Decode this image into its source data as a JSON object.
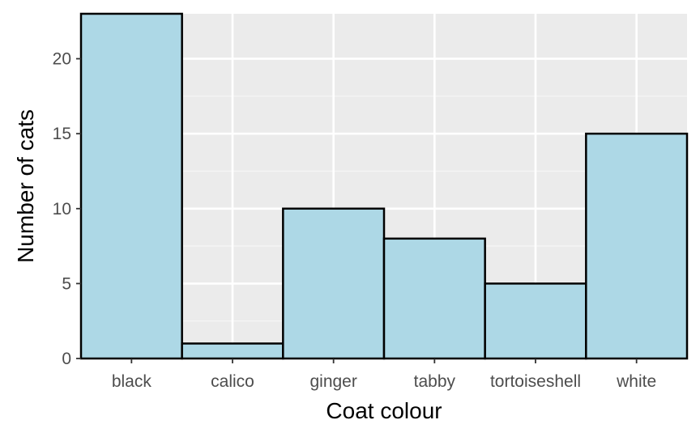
{
  "chart_data": {
    "type": "bar",
    "title": "",
    "xlabel": "Coat colour",
    "ylabel": "Number of cats",
    "categories": [
      "black",
      "calico",
      "ginger",
      "tabby",
      "tortoiseshell",
      "white"
    ],
    "values": [
      23,
      1,
      10,
      8,
      5,
      15
    ],
    "ylim": [
      0,
      23
    ],
    "yticks": [
      0,
      5,
      10,
      15,
      20
    ],
    "ytick_labels": [
      "0",
      "5",
      "10",
      "15",
      "20"
    ],
    "grid": true,
    "legend": "none",
    "colors": {
      "bar_fill": "#ADD8E6",
      "bar_stroke": "#000000",
      "panel_background": "#EBEBEB",
      "grid_major": "#FFFFFF",
      "grid_minor": "#F5F5F5",
      "tick_text": "#4D4D4D",
      "axis_title_text": "#000000"
    }
  }
}
